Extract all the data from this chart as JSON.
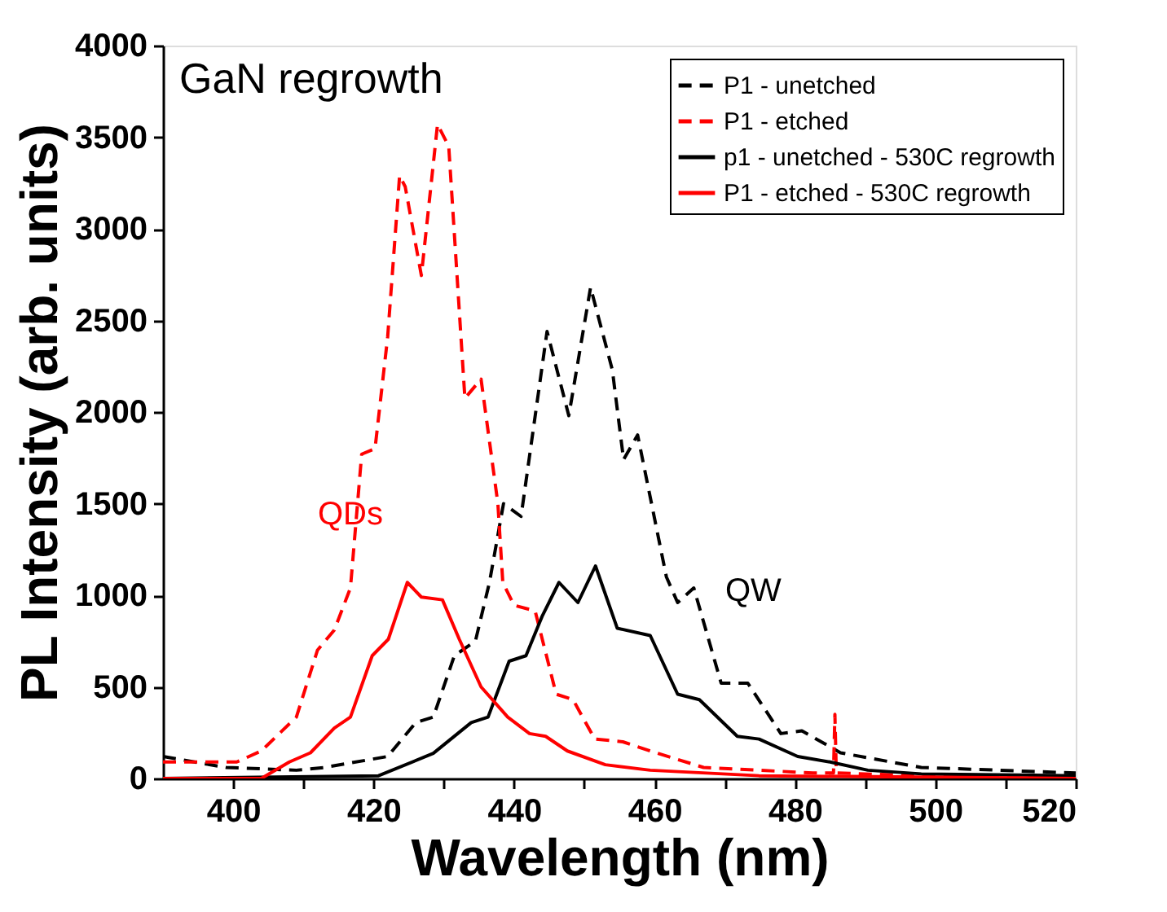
{
  "chart_data": {
    "type": "line",
    "xlabel": "Wavelength (nm)",
    "ylabel": "PL Intensity (arb. units)",
    "xlim": [
      390,
      520
    ],
    "ylim": [
      0,
      4000
    ],
    "xticks": [
      400,
      {
        "value": 410,
        "label": null
      },
      420,
      {
        "value": 430,
        "label": null
      },
      440,
      {
        "value": 450,
        "label": null
      },
      460,
      {
        "value": 470,
        "label": null
      },
      480,
      {
        "value": 490,
        "label": null
      },
      500,
      {
        "value": 510,
        "label": null
      },
      520
    ],
    "yticks": [
      0,
      500,
      1000,
      1500,
      2000,
      2500,
      3000,
      3500,
      4000
    ],
    "grid": false,
    "legend": "top right",
    "marker": "none",
    "annotations": [
      "GaN regrowth",
      "QDs",
      "QW"
    ],
    "series": [
      {
        "name": "P1 - unetched",
        "color": "#000000",
        "line_style": "dashed",
        "x": [
          390,
          399,
          409,
          413,
          422,
          426,
          428.5,
          431.5,
          434.5,
          436.5,
          438.5,
          441,
          444.7,
          447.8,
          450.9,
          454,
          455.6,
          457.6,
          461.7,
          463.3,
          465.6,
          469.5,
          473.3,
          478,
          481,
          486.5,
          498,
          520
        ],
        "values": [
          120,
          60,
          45,
          60,
          120,
          305,
          335,
          670,
          750,
          1070,
          1500,
          1430,
          2440,
          1980,
          2680,
          2230,
          1740,
          1875,
          1100,
          960,
          1040,
          520,
          520,
          245,
          260,
          140,
          60,
          30
        ]
      },
      {
        "name": "P1 - etched",
        "color": "#ff0000",
        "line_style": "dashed",
        "x": [
          390,
          400.5,
          404,
          409,
          412,
          414.4,
          416.7,
          418.3,
          420.2,
          422,
          423.7,
          424.5,
          426.8,
          429.1,
          430.7,
          433,
          435.3,
          437.7,
          438.4,
          440,
          443,
          446,
          448.4,
          451.5,
          455.5,
          459.4,
          467,
          482.6,
          485.5,
          485.7,
          485.9,
          498,
          520
        ],
        "values": [
          90,
          90,
          150,
          335,
          700,
          810,
          1040,
          1770,
          1800,
          2410,
          3290,
          3230,
          2745,
          3570,
          3450,
          2075,
          2180,
          1500,
          1070,
          945,
          915,
          460,
          430,
          215,
          200,
          150,
          60,
          30,
          30,
          350,
          30,
          15,
          0
        ]
      },
      {
        "name": "p1 - unetched - 530C regrowth",
        "color": "#000000",
        "line_style": "solid",
        "x": [
          390,
          420.7,
          428.5,
          433.9,
          436.3,
          439.3,
          441.7,
          444,
          446.4,
          449.1,
          451.6,
          454.7,
          459.4,
          463.3,
          466.4,
          471.8,
          474.9,
          480.4,
          485,
          490.4,
          498,
          520
        ],
        "values": [
          0,
          15,
          137,
          305,
          335,
          640,
          670,
          885,
          1070,
          960,
          1160,
          820,
          780,
          460,
          430,
          230,
          215,
          120,
          90,
          45,
          25,
          15
        ]
      },
      {
        "name": "P1 - etched - 530C regrowth",
        "color": "#ff0000",
        "line_style": "solid",
        "x": [
          390,
          404,
          408,
          411,
          414.4,
          416.7,
          419.8,
          422.1,
          424.8,
          426.8,
          429.8,
          432.2,
          435.3,
          439.1,
          442.2,
          444.5,
          447.6,
          453,
          459.4,
          474.9,
          520
        ],
        "values": [
          0,
          0,
          90,
          140,
          275,
          335,
          670,
          760,
          1070,
          990,
          975,
          760,
          500,
          335,
          245,
          230,
          150,
          75,
          45,
          15,
          0
        ]
      }
    ]
  }
}
